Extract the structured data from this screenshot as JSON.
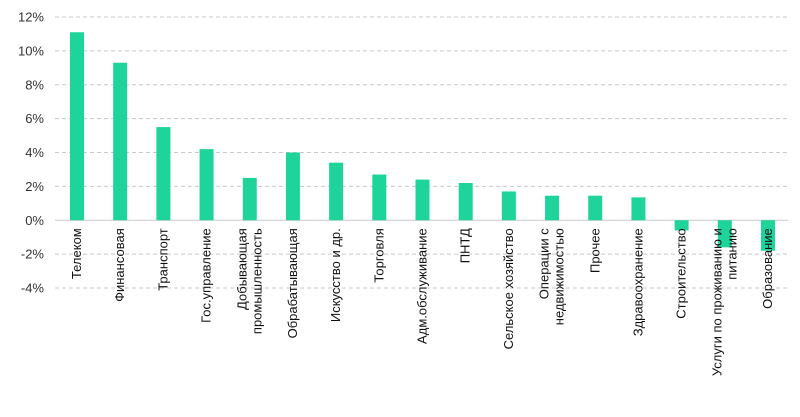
{
  "chart_data": {
    "type": "bar",
    "title": "",
    "xlabel": "",
    "ylabel": "",
    "ylim": [
      -4,
      12
    ],
    "yticks": [
      -4,
      -2,
      0,
      2,
      4,
      6,
      8,
      10,
      12
    ],
    "ytick_labels": [
      "-4%",
      "-2%",
      "0%",
      "2%",
      "4%",
      "6%",
      "8%",
      "10%",
      "12%"
    ],
    "grid": true,
    "legend": "none",
    "bar_color": "#1ed49a",
    "categories": [
      [
        "Телеком"
      ],
      [
        "Финансовая"
      ],
      [
        "Транспорт"
      ],
      [
        "Гос.управление"
      ],
      [
        "Добывающая",
        "промышленность"
      ],
      [
        "Обрабатывающая"
      ],
      [
        "Искусство и др."
      ],
      [
        "Торговля"
      ],
      [
        "Адм.обслуживание"
      ],
      [
        "ПНТД"
      ],
      [
        "Сельское хозяйство"
      ],
      [
        "Операции с",
        "недвижимостью"
      ],
      [
        "Прочее"
      ],
      [
        "Здравоохранение"
      ],
      [
        "Строительство"
      ],
      [
        "Услуги по проживанию и",
        "питанию"
      ],
      [
        "Образование"
      ]
    ],
    "values": [
      11.1,
      9.3,
      5.5,
      4.2,
      2.5,
      4.0,
      3.4,
      2.7,
      2.4,
      2.2,
      1.7,
      1.45,
      1.45,
      1.35,
      -0.6,
      -1.6,
      -1.8
    ]
  }
}
